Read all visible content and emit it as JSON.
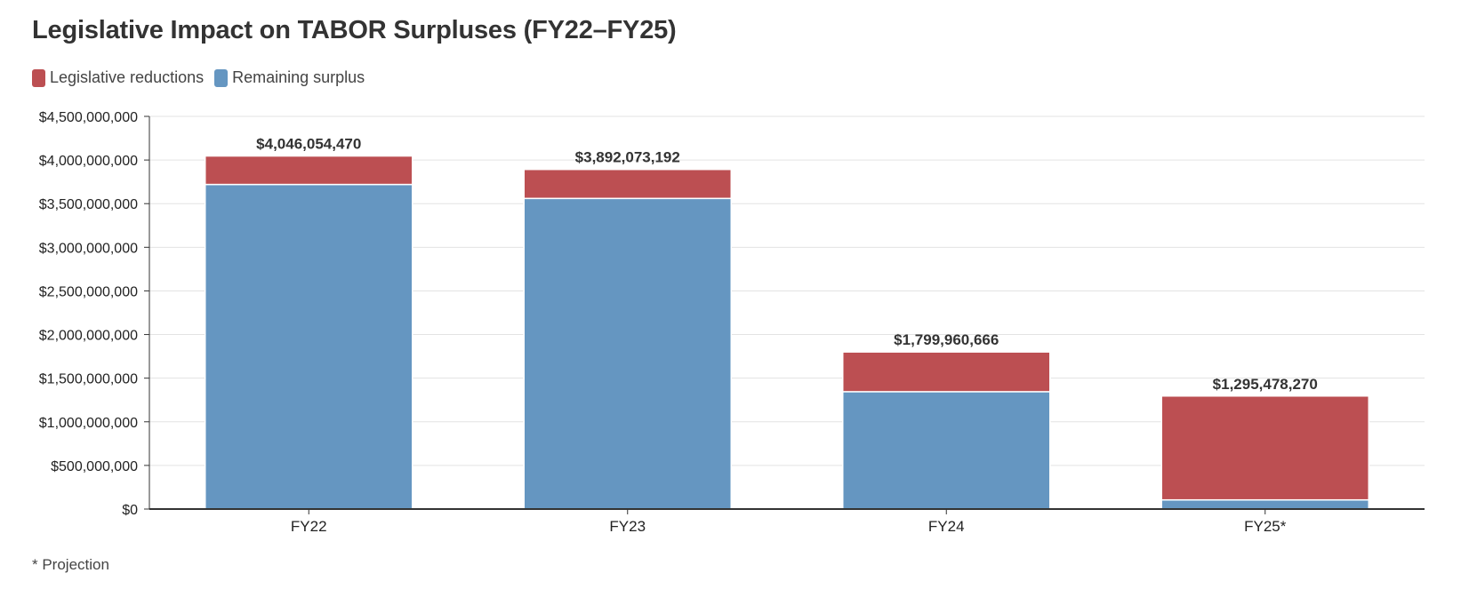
{
  "title": "Legislative Impact on TABOR Surpluses (FY22–FY25)",
  "legend": {
    "items": [
      {
        "label": "Legislative reductions",
        "color": "#bc4f52"
      },
      {
        "label": "Remaining surplus",
        "color": "#6596c1"
      }
    ]
  },
  "footnote": "* Projection",
  "chart_data": {
    "type": "bar",
    "stacked": true,
    "categories": [
      "FY22",
      "FY23",
      "FY24",
      "FY25*"
    ],
    "series": [
      {
        "name": "Remaining surplus",
        "color": "#6596c1",
        "values": [
          3720000000,
          3560000000,
          1345000000,
          105000000
        ]
      },
      {
        "name": "Legislative reductions",
        "color": "#bc4f52",
        "values": [
          326054470,
          332073192,
          454960666,
          1190478270
        ]
      }
    ],
    "totals": [
      4046054470,
      3892073192,
      1799960666,
      1295478270
    ],
    "total_labels": [
      "$4,046,054,470",
      "$3,892,073,192",
      "$1,799,960,666",
      "$1,295,478,270"
    ],
    "ylim": [
      0,
      4500000000
    ],
    "yticks": [
      0,
      500000000,
      1000000000,
      1500000000,
      2000000000,
      2500000000,
      3000000000,
      3500000000,
      4000000000,
      4500000000
    ],
    "ytick_labels": [
      "$0",
      "$500,000,000",
      "$1,000,000,000",
      "$1,500,000,000",
      "$2,000,000,000",
      "$2,500,000,000",
      "$3,000,000,000",
      "$3,500,000,000",
      "$4,000,000,000",
      "$4,500,000,000"
    ],
    "xlabel": "",
    "ylabel": "",
    "grid": true,
    "legend_position": "top-left"
  }
}
